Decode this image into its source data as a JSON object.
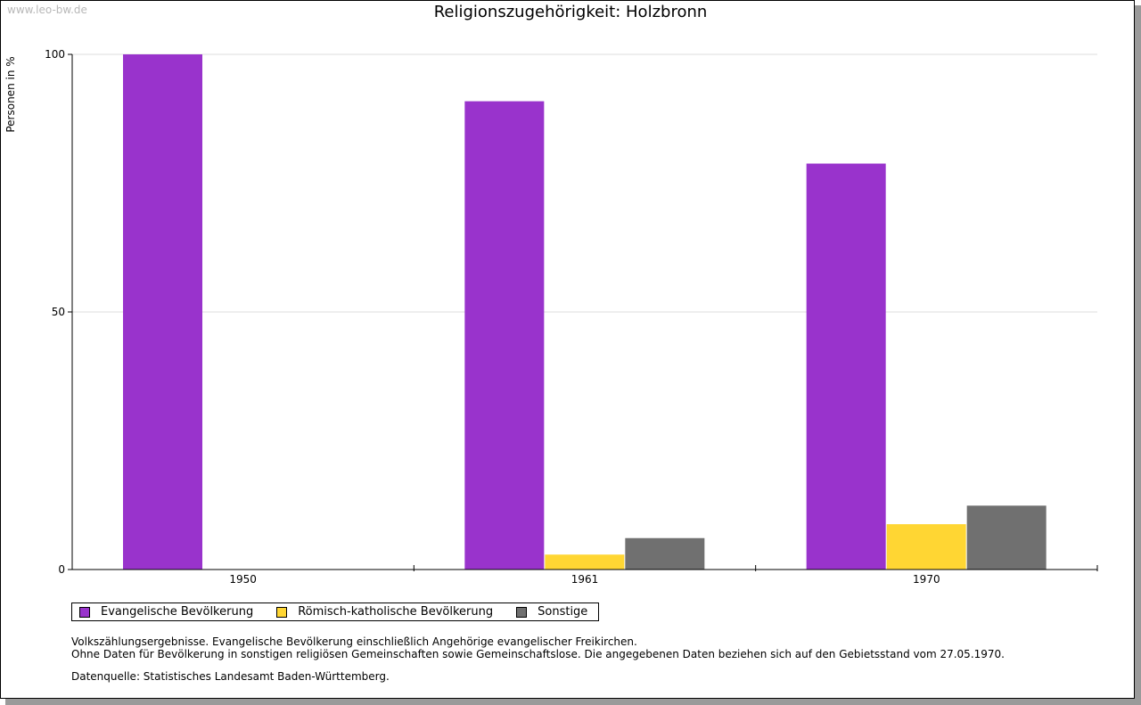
{
  "watermark": "www.leo-bw.de",
  "chart_data": {
    "type": "bar",
    "title": "Religionszugehörigkeit: Holzbronn",
    "ylabel": "Personen in %",
    "xlabel": "",
    "categories": [
      "1950",
      "1961",
      "1970"
    ],
    "ylim": [
      0,
      100
    ],
    "yticks": [
      0,
      50,
      100
    ],
    "grid": true,
    "legend_placement": "bottom-left",
    "series": [
      {
        "name": "Evangelische Bevölkerung",
        "color": "#9933cc",
        "values": [
          100,
          90.9,
          78.8
        ]
      },
      {
        "name": "Römisch-katholische Bevölkerung",
        "color": "#ffd633",
        "values": [
          0,
          2.9,
          8.8
        ]
      },
      {
        "name": "Sonstige",
        "color": "#707070",
        "values": [
          0,
          6.1,
          12.4
        ]
      }
    ]
  },
  "notes": [
    "Volkszählungsergebnisse. Evangelische Bevölkerung einschließlich Angehörige evangelischer Freikirchen.",
    "Ohne Daten für Bevölkerung in sonstigen religiösen Gemeinschaften sowie Gemeinschaftslose. Die angegebenen Daten beziehen sich auf den Gebietsstand vom 27.05.1970."
  ],
  "source": "Datenquelle: Statistisches Landesamt Baden-Württemberg."
}
